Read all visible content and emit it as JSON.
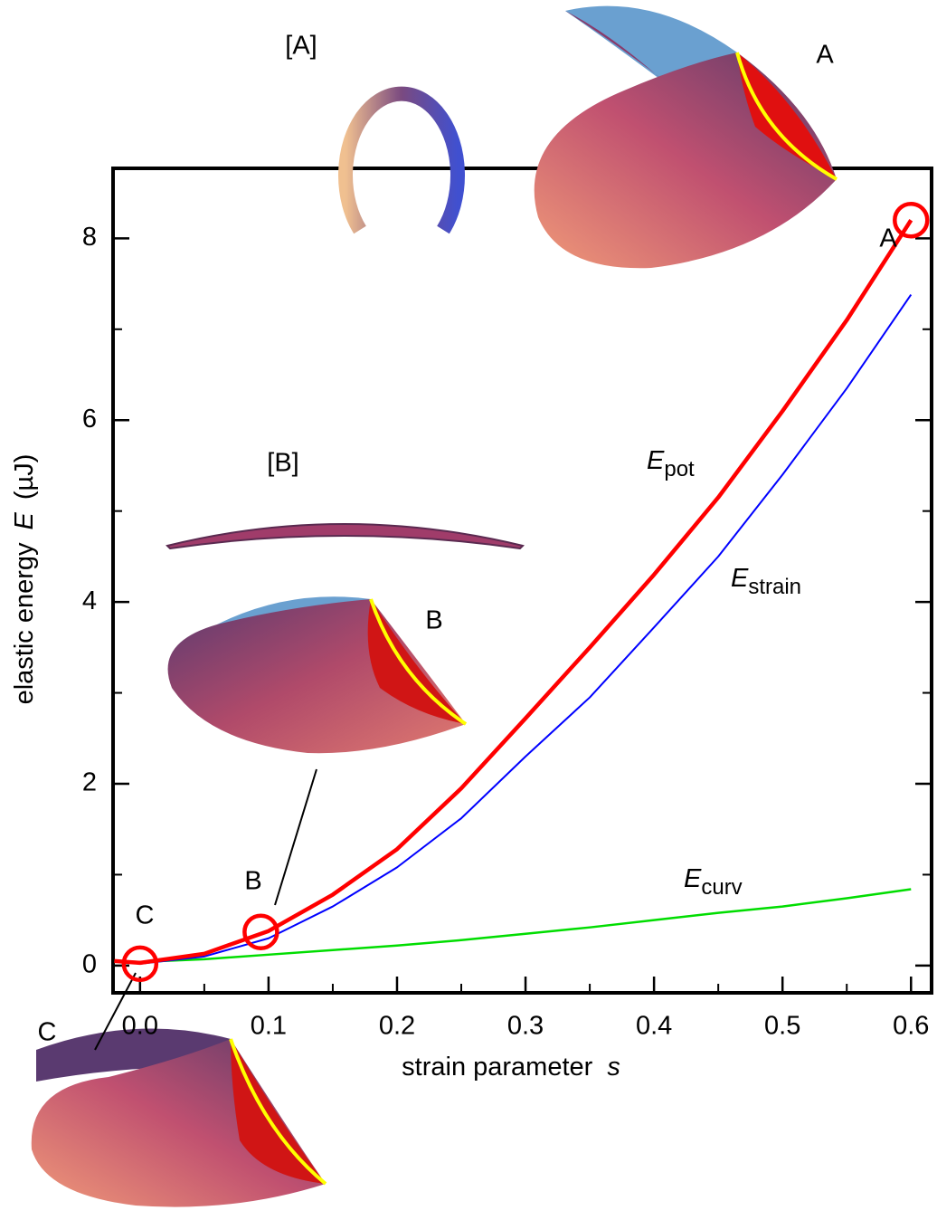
{
  "chart_data": {
    "type": "line",
    "xlabel": "strain parameter",
    "xlabel_symbol": "s",
    "ylabel": "elastic energy",
    "ylabel_symbol": "E",
    "ylabel_unit": "(µJ)",
    "x": [
      -0.02,
      0,
      0.05,
      0.1,
      0.15,
      0.2,
      0.25,
      0.3,
      0.35,
      0.4,
      0.45,
      0.5,
      0.55,
      0.6
    ],
    "series": [
      {
        "name": "E",
        "subscript": "pot",
        "color": "#ff0000",
        "width": 4.5,
        "values": [
          0.05,
          0.03,
          0.13,
          0.38,
          0.78,
          1.28,
          1.95,
          2.72,
          3.5,
          4.3,
          5.15,
          6.1,
          7.1,
          8.2
        ]
      },
      {
        "name": "E",
        "subscript": "strain",
        "color": "#0000ff",
        "width": 2,
        "values": [
          0.05,
          0.02,
          0.1,
          0.3,
          0.65,
          1.08,
          1.62,
          2.3,
          2.95,
          3.72,
          4.5,
          5.4,
          6.35,
          7.38
        ]
      },
      {
        "name": "E",
        "subscript": "curv",
        "color": "#00dd00",
        "width": 2.5,
        "values": [
          0.05,
          0.04,
          0.07,
          0.12,
          0.17,
          0.22,
          0.28,
          0.35,
          0.42,
          0.5,
          0.58,
          0.65,
          0.74,
          0.84
        ]
      }
    ],
    "markers": [
      {
        "x": 0.6,
        "y": 8.2,
        "color": "#ff0000"
      },
      {
        "x": 0.094,
        "y": 0.37,
        "color": "#ff0000"
      },
      {
        "x": 0.0,
        "y": 0.02,
        "color": "#ff0000"
      }
    ],
    "annotations": [
      "A",
      "A",
      "[A]",
      "[B]",
      "B",
      "B",
      "C",
      "C"
    ],
    "xlim": [
      -0.021,
      0.616
    ],
    "ylim": [
      -0.3,
      8.77
    ],
    "xticks": [
      {
        "value": 0,
        "label": "0.0"
      },
      0.1,
      0.2,
      0.3,
      0.4,
      0.5,
      0.6
    ],
    "yticks": [
      0,
      2,
      4,
      6,
      8
    ],
    "xminorticks": [
      0.05,
      0.15,
      0.25,
      0.35,
      0.45,
      0.55
    ],
    "yminorticks": [
      1,
      3,
      5,
      7
    ]
  }
}
